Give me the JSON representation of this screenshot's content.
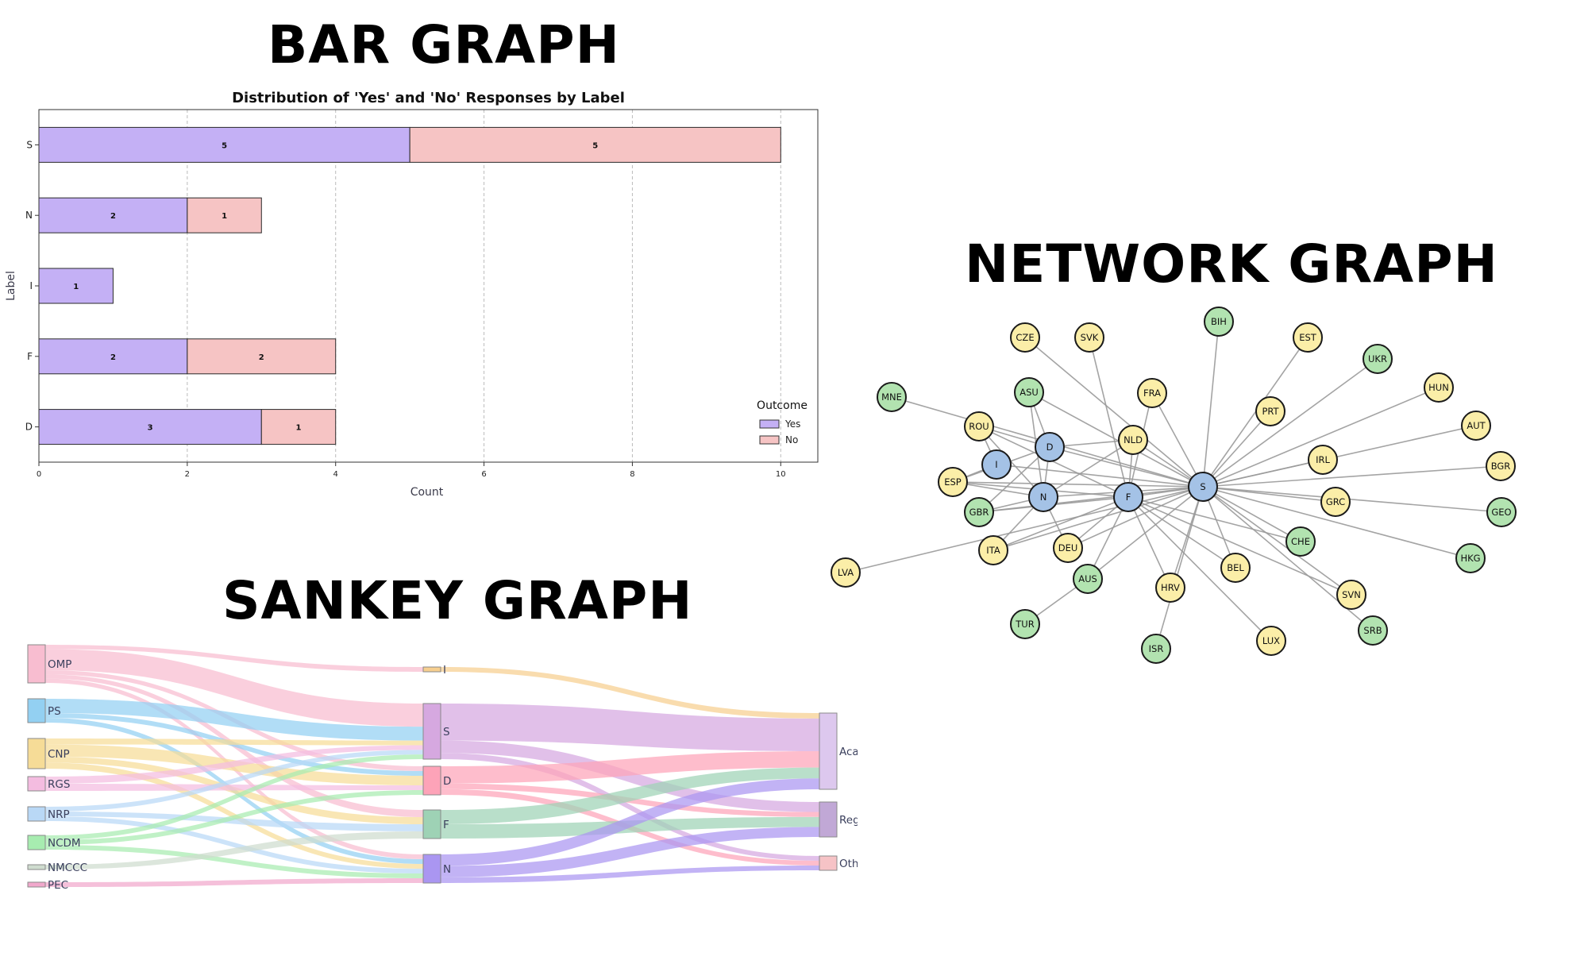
{
  "headings": {
    "bar": "BAR GRAPH",
    "network": "NETWORK GRAPH",
    "sankey": "SANKEY GRAPH"
  },
  "colors": {
    "yes": "#c4b0f5",
    "no": "#f6c4c4",
    "network_blue": "#a4c2e6",
    "network_green": "#b2e3b0",
    "network_yellow": "#fbeea8"
  },
  "chart_data": [
    {
      "type": "bar",
      "orientation": "horizontal-stacked",
      "title": "Distribution of 'Yes' and 'No' Responses by Label",
      "xlabel": "Count",
      "ylabel": "Label",
      "categories": [
        "S",
        "N",
        "I",
        "F",
        "D"
      ],
      "series": [
        {
          "name": "Yes",
          "values": [
            5,
            2,
            1,
            2,
            3
          ]
        },
        {
          "name": "No",
          "values": [
            5,
            1,
            0,
            2,
            1
          ]
        }
      ],
      "xlim": [
        0,
        10.5
      ],
      "xticks": [
        "0",
        "2",
        "4",
        "6",
        "8",
        "10"
      ],
      "legend_title": "Outcome",
      "legend_position": "lower-right",
      "grid": "x-dashed"
    },
    {
      "type": "network",
      "nodes": [
        {
          "id": "S",
          "group": "blue"
        },
        {
          "id": "F",
          "group": "blue"
        },
        {
          "id": "N",
          "group": "blue"
        },
        {
          "id": "D",
          "group": "blue"
        },
        {
          "id": "I",
          "group": "blue"
        },
        {
          "id": "CZE",
          "group": "yellow"
        },
        {
          "id": "SVK",
          "group": "yellow"
        },
        {
          "id": "BIH",
          "group": "green"
        },
        {
          "id": "EST",
          "group": "yellow"
        },
        {
          "id": "UKR",
          "group": "green"
        },
        {
          "id": "HUN",
          "group": "yellow"
        },
        {
          "id": "AUT",
          "group": "yellow"
        },
        {
          "id": "BGR",
          "group": "yellow"
        },
        {
          "id": "GEO",
          "group": "green"
        },
        {
          "id": "HKG",
          "group": "green"
        },
        {
          "id": "MNE",
          "group": "green"
        },
        {
          "id": "ASU",
          "group": "green"
        },
        {
          "id": "FRA",
          "group": "yellow"
        },
        {
          "id": "ROU",
          "group": "yellow"
        },
        {
          "id": "PRT",
          "group": "yellow"
        },
        {
          "id": "NLD",
          "group": "yellow"
        },
        {
          "id": "IRL",
          "group": "yellow"
        },
        {
          "id": "ESP",
          "group": "yellow"
        },
        {
          "id": "GRC",
          "group": "yellow"
        },
        {
          "id": "GBR",
          "group": "green"
        },
        {
          "id": "CHE",
          "group": "green"
        },
        {
          "id": "ITA",
          "group": "yellow"
        },
        {
          "id": "DEU",
          "group": "yellow"
        },
        {
          "id": "BEL",
          "group": "yellow"
        },
        {
          "id": "LVA",
          "group": "yellow"
        },
        {
          "id": "AUS",
          "group": "green"
        },
        {
          "id": "HRV",
          "group": "yellow"
        },
        {
          "id": "SVN",
          "group": "yellow"
        },
        {
          "id": "TUR",
          "group": "green"
        },
        {
          "id": "SRB",
          "group": "green"
        },
        {
          "id": "ISR",
          "group": "green"
        },
        {
          "id": "LUX",
          "group": "yellow"
        }
      ],
      "edges": [
        [
          "S",
          "F"
        ],
        [
          "S",
          "N"
        ],
        [
          "S",
          "D"
        ],
        [
          "S",
          "I"
        ],
        [
          "S",
          "CZE"
        ],
        [
          "S",
          "BIH"
        ],
        [
          "S",
          "EST"
        ],
        [
          "S",
          "UKR"
        ],
        [
          "S",
          "HUN"
        ],
        [
          "S",
          "AUT"
        ],
        [
          "S",
          "BGR"
        ],
        [
          "S",
          "GEO"
        ],
        [
          "S",
          "HKG"
        ],
        [
          "S",
          "ASU"
        ],
        [
          "S",
          "FRA"
        ],
        [
          "S",
          "PRT"
        ],
        [
          "S",
          "NLD"
        ],
        [
          "S",
          "IRL"
        ],
        [
          "S",
          "ESP"
        ],
        [
          "S",
          "GRC"
        ],
        [
          "S",
          "GBR"
        ],
        [
          "S",
          "CHE"
        ],
        [
          "S",
          "ITA"
        ],
        [
          "S",
          "DEU"
        ],
        [
          "S",
          "BEL"
        ],
        [
          "S",
          "LVA"
        ],
        [
          "S",
          "AUS"
        ],
        [
          "S",
          "HRV"
        ],
        [
          "S",
          "SVN"
        ],
        [
          "S",
          "SRB"
        ],
        [
          "S",
          "ISR"
        ],
        [
          "S",
          "MNE"
        ],
        [
          "F",
          "SVK"
        ],
        [
          "F",
          "FRA"
        ],
        [
          "F",
          "ROU"
        ],
        [
          "F",
          "NLD"
        ],
        [
          "F",
          "ESP"
        ],
        [
          "F",
          "GBR"
        ],
        [
          "F",
          "DEU"
        ],
        [
          "F",
          "AUS"
        ],
        [
          "F",
          "HRV"
        ],
        [
          "F",
          "CHE"
        ],
        [
          "F",
          "SVN"
        ],
        [
          "F",
          "LUX"
        ],
        [
          "F",
          "BEL"
        ],
        [
          "F",
          "ITA"
        ],
        [
          "N",
          "D"
        ],
        [
          "N",
          "ESP"
        ],
        [
          "N",
          "GBR"
        ],
        [
          "N",
          "ITA"
        ],
        [
          "N",
          "DEU"
        ],
        [
          "N",
          "ASU"
        ],
        [
          "N",
          "ROU"
        ],
        [
          "N",
          "NLD"
        ],
        [
          "D",
          "ROU"
        ],
        [
          "D",
          "ESP"
        ],
        [
          "D",
          "GBR"
        ],
        [
          "D",
          "ASU"
        ],
        [
          "D",
          "NLD"
        ],
        [
          "I",
          "ESP"
        ],
        [
          "I",
          "ROU"
        ],
        [
          "AUS",
          "TUR"
        ]
      ]
    },
    {
      "type": "sankey",
      "nodes": {
        "left": [
          "OMP",
          "PS",
          "CNP",
          "RGS",
          "NRP",
          "NCDM",
          "NMCCC",
          "PEC"
        ],
        "middle": [
          "I",
          "S",
          "D",
          "F",
          "N"
        ],
        "right": [
          "Aca",
          "Reg",
          "Oth"
        ]
      },
      "links": [
        [
          "OMP",
          "I",
          1
        ],
        [
          "OMP",
          "S",
          5
        ],
        [
          "OMP",
          "D",
          1
        ],
        [
          "OMP",
          "F",
          1
        ],
        [
          "OMP",
          "N",
          1
        ],
        [
          "PS",
          "S",
          3
        ],
        [
          "PS",
          "D",
          1
        ],
        [
          "PS",
          "N",
          1
        ],
        [
          "CNP",
          "S",
          1
        ],
        [
          "CNP",
          "D",
          2
        ],
        [
          "CNP",
          "F",
          1
        ],
        [
          "CNP",
          "N",
          1
        ],
        [
          "RGS",
          "S",
          1
        ],
        [
          "RGS",
          "D",
          1
        ],
        [
          "NRP",
          "S",
          1
        ],
        [
          "NRP",
          "F",
          1
        ],
        [
          "NRP",
          "N",
          1
        ],
        [
          "NCDM",
          "S",
          1
        ],
        [
          "NCDM",
          "D",
          1
        ],
        [
          "NCDM",
          "N",
          1
        ],
        [
          "NMCCC",
          "F",
          1
        ],
        [
          "PEC",
          "N",
          1
        ],
        [
          "I",
          "Aca",
          1
        ],
        [
          "S",
          "Aca",
          6
        ],
        [
          "S",
          "Reg",
          2
        ],
        [
          "S",
          "Oth",
          1
        ],
        [
          "D",
          "Aca",
          3
        ],
        [
          "D",
          "Reg",
          1
        ],
        [
          "D",
          "Oth",
          1
        ],
        [
          "F",
          "Aca",
          2
        ],
        [
          "F",
          "Reg",
          2
        ],
        [
          "N",
          "Aca",
          2
        ],
        [
          "N",
          "Reg",
          2
        ],
        [
          "N",
          "Oth",
          1
        ]
      ]
    }
  ]
}
